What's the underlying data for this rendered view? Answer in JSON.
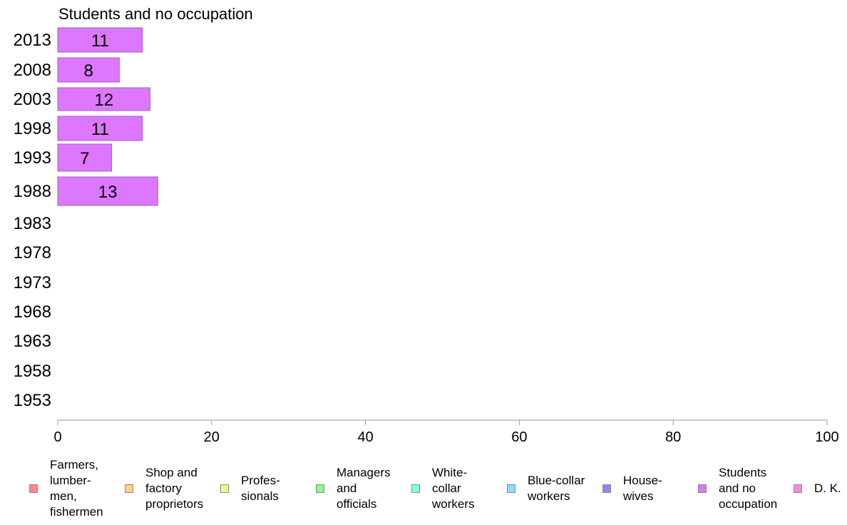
{
  "chart_data": {
    "type": "bar",
    "orientation": "horizontal",
    "title": "Students and no occupation",
    "categories": [
      "2013",
      "2008",
      "2003",
      "1998",
      "1993",
      "1988",
      "1983",
      "1978",
      "1973",
      "1968",
      "1963",
      "1958",
      "1953"
    ],
    "values": [
      11,
      8,
      12,
      11,
      7,
      13,
      null,
      null,
      null,
      null,
      null,
      null,
      null
    ],
    "bar_labels": [
      "11",
      "8",
      "12",
      "11",
      "7",
      "13",
      "",
      "",
      "",
      "",
      "",
      "",
      ""
    ],
    "bar_color": "#dd77ff",
    "xlim": [
      0,
      100
    ],
    "xticks": [
      "0",
      "20",
      "40",
      "60",
      "80",
      "100"
    ],
    "grid": false,
    "legend_position": "bottom",
    "legend": [
      {
        "label": "Farmers,\nlumber-\nmen,\nfishermen",
        "color": "#ff8888"
      },
      {
        "label": "Shop and\nfactory\nproprietors",
        "color": "#ffd27f"
      },
      {
        "label": "Profes-\nsionals",
        "color": "#e4ff88"
      },
      {
        "label": "Managers\nand\nofficials",
        "color": "#88ff88"
      },
      {
        "label": "White-\ncollar\nworkers",
        "color": "#88ffdd"
      },
      {
        "label": "Blue-collar\nworkers",
        "color": "#88ddff"
      },
      {
        "label": "House-\nwives",
        "color": "#8888ff"
      },
      {
        "label": "Students\nand no\noccupation",
        "color": "#dd77ff"
      },
      {
        "label": "D. K.",
        "color": "#ff88dd"
      }
    ]
  }
}
